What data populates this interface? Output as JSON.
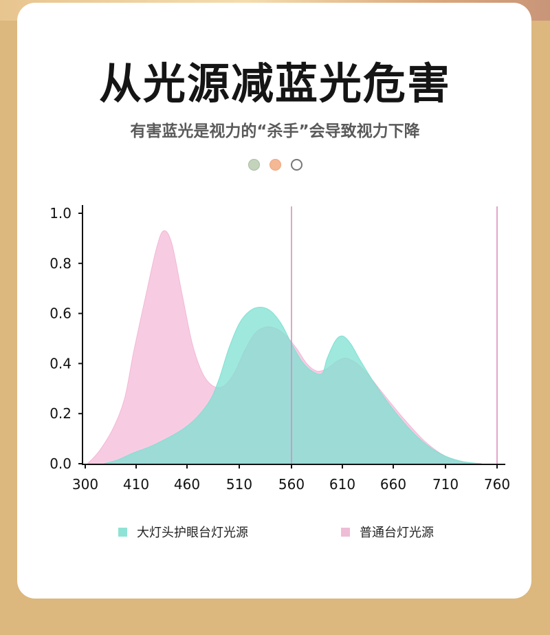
{
  "header": {
    "title": "从光源减蓝光危害",
    "subtitle": "有害蓝光是视力的“杀手”会导致视力下降"
  },
  "dots": [
    {
      "name": "green-dot",
      "color": "#c4d4bc",
      "border": "#a9bca3"
    },
    {
      "name": "orange-dot",
      "color": "#f5b894",
      "border": "#eca67f"
    },
    {
      "name": "hollow-dot",
      "color": "#ffffff",
      "border": "#777777"
    }
  ],
  "chart_data": {
    "type": "area",
    "x_ticks": [
      300,
      410,
      460,
      510,
      560,
      610,
      660,
      710,
      760
    ],
    "y_ticks": [
      0.0,
      0.2,
      0.4,
      0.6,
      0.8,
      1.0
    ],
    "y_tick_labels": [
      "0.0",
      "0.2",
      "0.4",
      "0.6",
      "0.8",
      "1.0"
    ],
    "ylim": [
      0,
      1.0
    ],
    "reference_lines": [
      560,
      760
    ],
    "series": [
      {
        "name": "普通台灯光源",
        "color": "#f3b6d6",
        "points": [
          [
            305,
            0.0
          ],
          [
            330,
            0.05
          ],
          [
            360,
            0.14
          ],
          [
            385,
            0.26
          ],
          [
            405,
            0.45
          ],
          [
            420,
            0.68
          ],
          [
            430,
            0.86
          ],
          [
            437,
            0.93
          ],
          [
            445,
            0.88
          ],
          [
            455,
            0.68
          ],
          [
            465,
            0.48
          ],
          [
            475,
            0.36
          ],
          [
            485,
            0.31
          ],
          [
            495,
            0.31
          ],
          [
            505,
            0.36
          ],
          [
            515,
            0.45
          ],
          [
            525,
            0.52
          ],
          [
            535,
            0.545
          ],
          [
            545,
            0.54
          ],
          [
            555,
            0.51
          ],
          [
            565,
            0.46
          ],
          [
            575,
            0.4
          ],
          [
            585,
            0.37
          ],
          [
            595,
            0.38
          ],
          [
            605,
            0.41
          ],
          [
            615,
            0.42
          ],
          [
            630,
            0.38
          ],
          [
            650,
            0.28
          ],
          [
            670,
            0.18
          ],
          [
            690,
            0.09
          ],
          [
            710,
            0.03
          ],
          [
            730,
            0.005
          ],
          [
            745,
            0.0
          ]
        ]
      },
      {
        "name": "大灯头护眼台灯光源",
        "color": "#7fe0d2",
        "points": [
          [
            340,
            0.0
          ],
          [
            370,
            0.015
          ],
          [
            400,
            0.04
          ],
          [
            430,
            0.08
          ],
          [
            460,
            0.15
          ],
          [
            480,
            0.24
          ],
          [
            490,
            0.33
          ],
          [
            500,
            0.46
          ],
          [
            510,
            0.56
          ],
          [
            520,
            0.61
          ],
          [
            530,
            0.625
          ],
          [
            540,
            0.61
          ],
          [
            550,
            0.56
          ],
          [
            560,
            0.48
          ],
          [
            570,
            0.41
          ],
          [
            580,
            0.37
          ],
          [
            590,
            0.36
          ],
          [
            595,
            0.42
          ],
          [
            603,
            0.49
          ],
          [
            610,
            0.51
          ],
          [
            618,
            0.48
          ],
          [
            628,
            0.41
          ],
          [
            645,
            0.3
          ],
          [
            665,
            0.19
          ],
          [
            685,
            0.1
          ],
          [
            705,
            0.04
          ],
          [
            725,
            0.01
          ],
          [
            745,
            0.0
          ]
        ]
      }
    ],
    "legend": [
      {
        "label": "大灯头护眼台灯光源",
        "color": "#8fe3d5"
      },
      {
        "label": "普通台灯光源",
        "color": "#efbcd6"
      }
    ]
  }
}
